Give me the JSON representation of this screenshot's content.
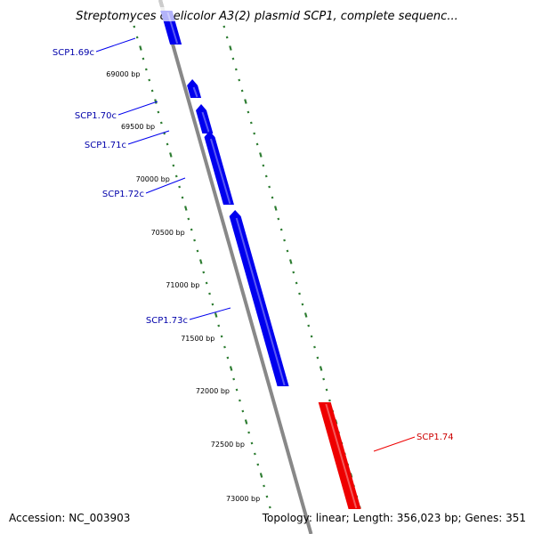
{
  "title": "Streptomyces coelicolor A3(2) plasmid SCP1, complete sequenc...",
  "footer": {
    "accession": "Accession: NC_003903",
    "summary": "Topology: linear; Length: 356,023 bp; Genes: 351"
  },
  "colors": {
    "reverse_gene": "#0000ee",
    "forward_gene": "#ee0000",
    "backbone": "#888888",
    "tick": "#2e7d32",
    "reverse_label": "#0000aa",
    "forward_label": "#cc0000"
  },
  "ticks": [
    {
      "label": "69000 bp"
    },
    {
      "label": "69500 bp"
    },
    {
      "label": "70000 bp"
    },
    {
      "label": "70500 bp"
    },
    {
      "label": "71000 bp"
    },
    {
      "label": "71500 bp"
    },
    {
      "label": "72000 bp"
    },
    {
      "label": "72500 bp"
    },
    {
      "label": "73000 bp"
    }
  ],
  "genes": [
    {
      "name": "SCP1.69c",
      "strand": "reverse"
    },
    {
      "name": "SCP1.70c",
      "strand": "reverse"
    },
    {
      "name": "SCP1.71c",
      "strand": "reverse"
    },
    {
      "name": "SCP1.72c",
      "strand": "reverse"
    },
    {
      "name": "SCP1.73c",
      "strand": "reverse"
    },
    {
      "name": "SCP1.74",
      "strand": "forward"
    }
  ]
}
